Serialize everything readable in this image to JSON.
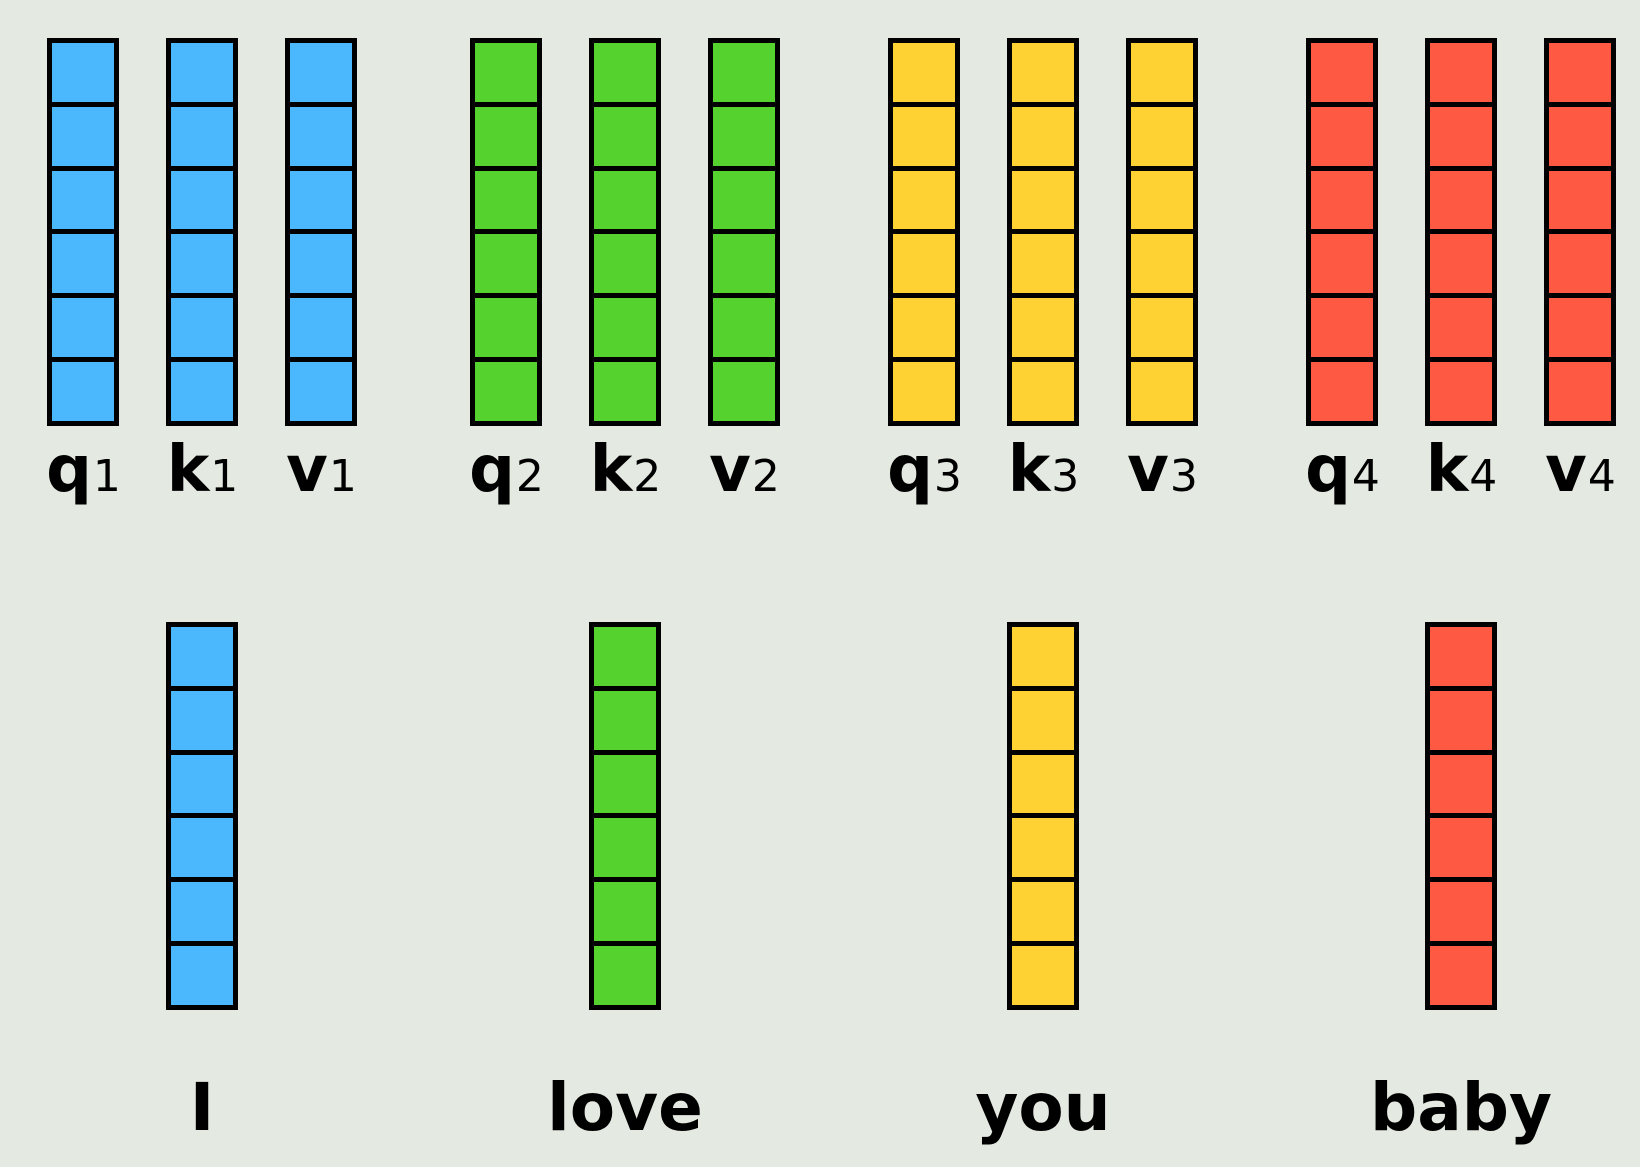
{
  "tokens": [
    {
      "word": "I",
      "color": "#4bb8fe",
      "vectors": [
        {
          "letter": "q",
          "sub": "1"
        },
        {
          "letter": "k",
          "sub": "1"
        },
        {
          "letter": "v",
          "sub": "1"
        }
      ]
    },
    {
      "word": "love",
      "color": "#55d22d",
      "vectors": [
        {
          "letter": "q",
          "sub": "2"
        },
        {
          "letter": "k",
          "sub": "2"
        },
        {
          "letter": "v",
          "sub": "2"
        }
      ]
    },
    {
      "word": "you",
      "color": "#fed232",
      "vectors": [
        {
          "letter": "q",
          "sub": "3"
        },
        {
          "letter": "k",
          "sub": "3"
        },
        {
          "letter": "v",
          "sub": "3"
        }
      ]
    },
    {
      "word": "baby",
      "color": "#fe5a43",
      "vectors": [
        {
          "letter": "q",
          "sub": "4"
        },
        {
          "letter": "k",
          "sub": "4"
        },
        {
          "letter": "v",
          "sub": "4"
        }
      ]
    }
  ],
  "cells_per_vector": 6,
  "colors": {
    "background": "#e4e9e1",
    "outline": "#000000"
  }
}
